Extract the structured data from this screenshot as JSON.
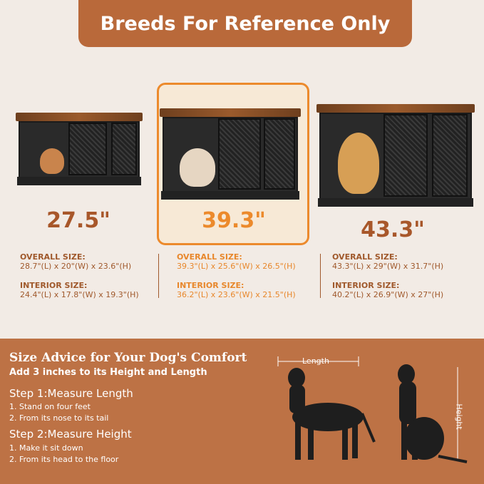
{
  "banner": {
    "title": "Breeds For Reference Only"
  },
  "products": [
    {
      "size": "27.5\"",
      "overall_label": "OVERALL SIZE:",
      "overall": "28.7\"(L)  x  20\"(W)  x  23.6\"(H)",
      "interior_label": "INTERIOR SIZE:",
      "interior": "24.4\"(L)  x  17.8\"(W)  x  19.3\"(H)"
    },
    {
      "size": "39.3\"",
      "overall_label": "OVERALL SIZE:",
      "overall": "39.3\"(L)  x  25.6\"(W)  x  26.5\"(H)",
      "interior_label": "INTERIOR SIZE:",
      "interior": "36.2\"(L)  x  23.6\"(W)  x  21.5\"(H)",
      "highlighted": true
    },
    {
      "size": "43.3\"",
      "overall_label": "OVERALL SIZE:",
      "overall": "43.3\"(L)  x  29\"(W)  x  31.7\"(H)",
      "interior_label": "INTERIOR SIZE:",
      "interior": "40.2\"(L)  x  26.9\"(W)  x  27\"(H)"
    }
  ],
  "advice": {
    "title": "Size Advice for Your Dog's Comfort",
    "subtitle": "Add 3 inches to its Height and Length",
    "step1": "Step 1:Measure Length",
    "step1_items": [
      "1. Stand on four feet",
      "2. From its nose to its tail"
    ],
    "step2": "Step 2:Measure Height",
    "step2_items": [
      "1. Make it sit down",
      "2. From its head to the floor"
    ],
    "length_label": "Length",
    "height_label": "Height"
  },
  "colors": {
    "banner": "#b9693a",
    "accent": "#ec8a2c",
    "text": "#a0592c",
    "panel": "#bd7245"
  }
}
